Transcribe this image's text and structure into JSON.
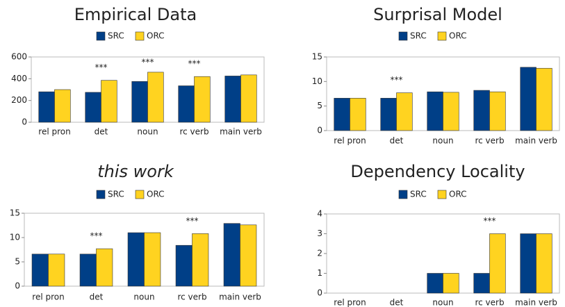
{
  "chart_data": [
    {
      "type": "bar",
      "title": "Empirical Data",
      "categories": [
        "rel pron",
        "det",
        "noun",
        "rc verb",
        "main verb"
      ],
      "series": [
        {
          "name": "SRC",
          "color": "#003f87",
          "values": [
            280,
            275,
            375,
            335,
            425
          ]
        },
        {
          "name": "ORC",
          "color": "#ffd320",
          "values": [
            300,
            385,
            460,
            420,
            435
          ]
        }
      ],
      "annotations": [
        null,
        "***",
        "***",
        "***",
        null
      ],
      "ylim": [
        0,
        600
      ],
      "yticks": [
        0,
        200,
        400,
        600
      ],
      "grid": false
    },
    {
      "type": "bar",
      "title": "Surprisal Model",
      "categories": [
        "rel pron",
        "det",
        "noun",
        "rc verb",
        "main verb"
      ],
      "series": [
        {
          "name": "SRC",
          "color": "#003f87",
          "values": [
            6.6,
            6.6,
            7.9,
            8.2,
            12.9
          ]
        },
        {
          "name": "ORC",
          "color": "#ffd320",
          "values": [
            6.6,
            7.7,
            7.8,
            7.9,
            12.7
          ]
        }
      ],
      "annotations": [
        null,
        "***",
        null,
        null,
        null
      ],
      "ylim": [
        0,
        15
      ],
      "yticks": [
        0,
        5,
        10,
        15
      ],
      "grid": false
    },
    {
      "type": "bar",
      "title": "this work",
      "categories": [
        "rel pron",
        "det",
        "noun",
        "rc verb",
        "main verb"
      ],
      "series": [
        {
          "name": "SRC",
          "color": "#003f87",
          "values": [
            6.6,
            6.6,
            11,
            8.4,
            12.9
          ]
        },
        {
          "name": "ORC",
          "color": "#ffd320",
          "values": [
            6.6,
            7.7,
            11,
            10.8,
            12.6
          ]
        }
      ],
      "annotations": [
        null,
        "***",
        null,
        "***",
        null
      ],
      "ylim": [
        0,
        15
      ],
      "yticks": [
        0,
        5,
        10,
        15
      ],
      "grid": false
    },
    {
      "type": "bar",
      "title": "Dependency Locality",
      "categories": [
        "rel pron",
        "det",
        "noun",
        "rc verb",
        "main verb"
      ],
      "series": [
        {
          "name": "SRC",
          "color": "#003f87",
          "values": [
            0,
            0,
            1,
            1,
            3
          ]
        },
        {
          "name": "ORC",
          "color": "#ffd320",
          "values": [
            0,
            0,
            1,
            3,
            3
          ]
        }
      ],
      "annotations": [
        null,
        null,
        null,
        "***",
        null
      ],
      "ylim": [
        0,
        4
      ],
      "yticks": [
        0,
        1,
        2,
        3,
        4
      ],
      "grid": false
    }
  ]
}
